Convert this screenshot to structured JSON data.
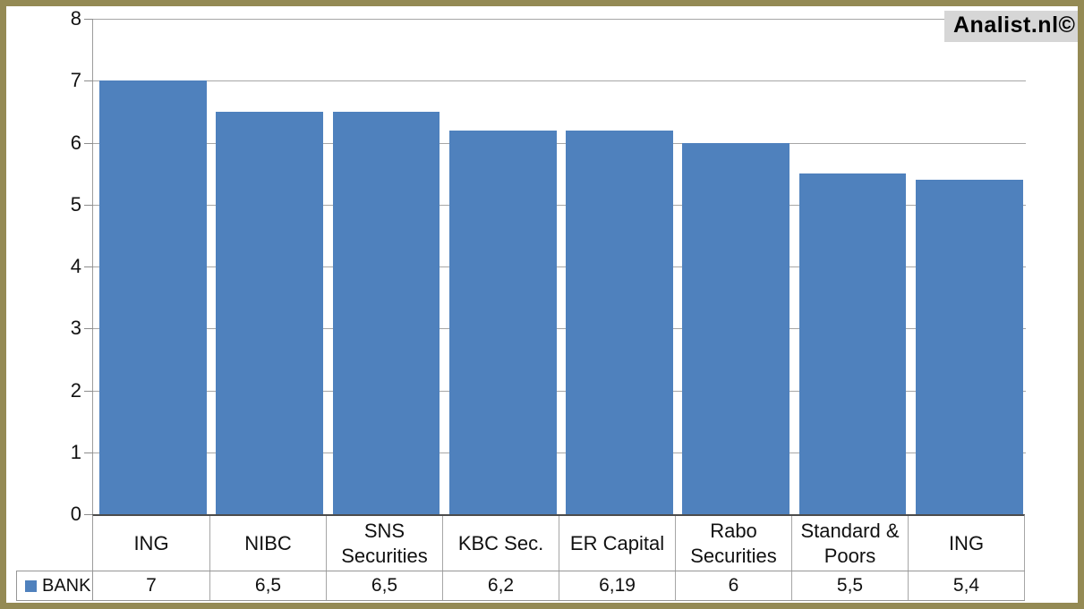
{
  "watermark": {
    "label": "Analist.nl©"
  },
  "legend": {
    "label": "BANK",
    "marker_color": "#4F81BD"
  },
  "chart_data": {
    "type": "bar",
    "title": "",
    "xlabel": "",
    "ylabel": "",
    "categories": [
      "ING",
      "NIBC",
      "SNS Securities",
      "KBC Sec.",
      "ER Capital",
      "Rabo Securities",
      "Standard & Poors",
      "ING"
    ],
    "series": [
      {
        "name": "BANK",
        "values": [
          7,
          6.5,
          6.5,
          6.2,
          6.19,
          6,
          5.5,
          5.4
        ],
        "display_values": [
          "7",
          "6,5",
          "6,5",
          "6,2",
          "6,19",
          "6",
          "5,5",
          "5,4"
        ],
        "color": "#4F81BD"
      }
    ],
    "ylim": [
      0,
      8
    ],
    "yticks": [
      0,
      1,
      2,
      3,
      4,
      5,
      6,
      7,
      8
    ],
    "grid": true,
    "legend_position": "bottom-left data table"
  },
  "colors": {
    "frame_border": "#948A54",
    "background": "#FFFFFF",
    "bar": "#4F81BD",
    "gridline": "#A6A6A6",
    "x_axis_line": "#4C4C4C",
    "y_axis_line": "#9C9C9C",
    "table_border": "#969696",
    "watermark_bg": "#D6D6D6",
    "text": "#111111"
  }
}
